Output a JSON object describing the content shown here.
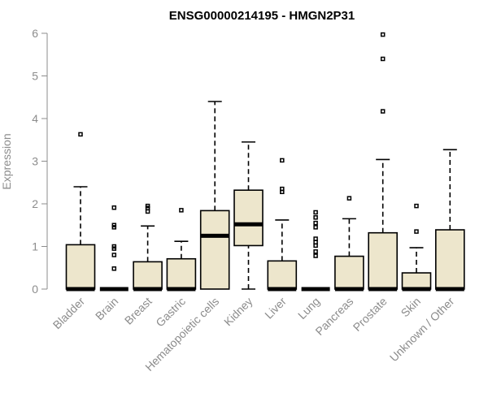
{
  "chart_data": {
    "type": "boxplot",
    "title": "ENSG00000214195 - HMGN2P31",
    "ylabel": "Expression",
    "xlabel": "",
    "ylim": [
      0,
      6
    ],
    "yticks": [
      0,
      1,
      2,
      3,
      4,
      5,
      6
    ],
    "grid": false,
    "box_fill": "#ede6cc",
    "categories": [
      "Bladder",
      "Brain",
      "Breast",
      "Gastric",
      "Hematopoietic cells",
      "Kidney",
      "Liver",
      "Lung",
      "Pancreas",
      "Prostate",
      "Skin",
      "Unknown / Other"
    ],
    "boxes": [
      {
        "min": 0,
        "q1": 0,
        "median": 0,
        "q3": 1.04,
        "max": 2.4,
        "outliers": [
          3.63
        ]
      },
      {
        "min": 0,
        "q1": 0,
        "median": 0,
        "q3": 0,
        "max": 0,
        "outliers": [
          0.48,
          0.8,
          0.95,
          1.0,
          1.45,
          1.5,
          1.91
        ]
      },
      {
        "min": 0,
        "q1": 0,
        "median": 0,
        "q3": 0.64,
        "max": 1.48,
        "outliers": [
          1.82,
          1.9,
          1.95
        ]
      },
      {
        "min": 0,
        "q1": 0,
        "median": 0,
        "q3": 0.71,
        "max": 1.12,
        "outliers": [
          1.85
        ]
      },
      {
        "min": 0,
        "q1": 0,
        "median": 1.25,
        "q3": 1.84,
        "max": 4.4,
        "outliers": []
      },
      {
        "min": 0,
        "q1": 1.02,
        "median": 1.52,
        "q3": 2.32,
        "max": 3.45,
        "outliers": []
      },
      {
        "min": 0,
        "q1": 0,
        "median": 0,
        "q3": 0.66,
        "max": 1.62,
        "outliers": [
          2.28,
          2.35,
          3.02
        ]
      },
      {
        "min": 0,
        "q1": 0,
        "median": 0,
        "q3": 0,
        "max": 0,
        "outliers": [
          0.78,
          0.88,
          1.02,
          1.1,
          1.18,
          1.45,
          1.55,
          1.68,
          1.8
        ]
      },
      {
        "min": 0,
        "q1": 0,
        "median": 0,
        "q3": 0.77,
        "max": 1.65,
        "outliers": [
          2.13
        ]
      },
      {
        "min": 0,
        "q1": 0,
        "median": 0,
        "q3": 1.32,
        "max": 3.04,
        "outliers": [
          4.17,
          5.4,
          5.97
        ]
      },
      {
        "min": 0,
        "q1": 0,
        "median": 0,
        "q3": 0.38,
        "max": 0.97,
        "outliers": [
          1.35,
          1.95
        ]
      },
      {
        "min": 0,
        "q1": 0,
        "median": 0,
        "q3": 1.39,
        "max": 3.27,
        "outliers": []
      }
    ]
  }
}
